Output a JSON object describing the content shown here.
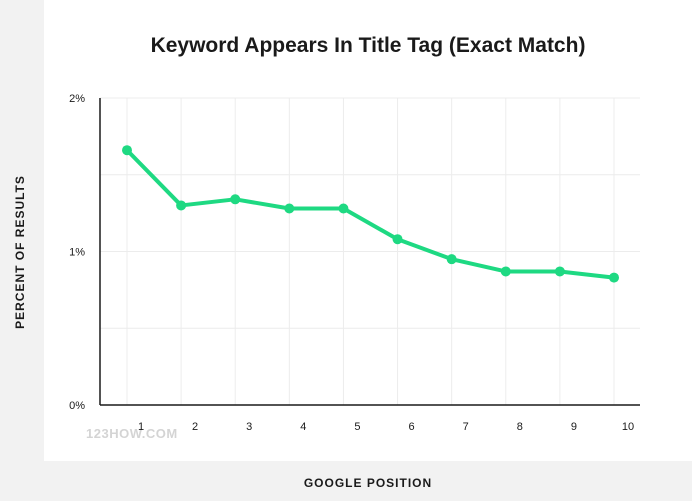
{
  "chart_data": {
    "type": "line",
    "title": "Keyword Appears In Title Tag (Exact Match)",
    "xlabel": "GOOGLE POSITION",
    "ylabel": "PERCENT OF RESULTS",
    "categories": [
      "1",
      "2",
      "3",
      "4",
      "5",
      "6",
      "7",
      "8",
      "9",
      "10"
    ],
    "series": [
      {
        "values": [
          1.66,
          1.3,
          1.34,
          1.28,
          1.28,
          1.08,
          0.95,
          0.87,
          0.87,
          0.83
        ]
      }
    ],
    "ylim": [
      0,
      2
    ],
    "yticks": [
      0,
      1,
      2
    ],
    "ytick_labels": [
      "0%",
      "1%",
      "2%"
    ],
    "grid": true,
    "line_color": "#1ed982",
    "grid_color": "#ececec",
    "axis_color": "#1a1a1a"
  },
  "watermark": "123HOW.COM"
}
